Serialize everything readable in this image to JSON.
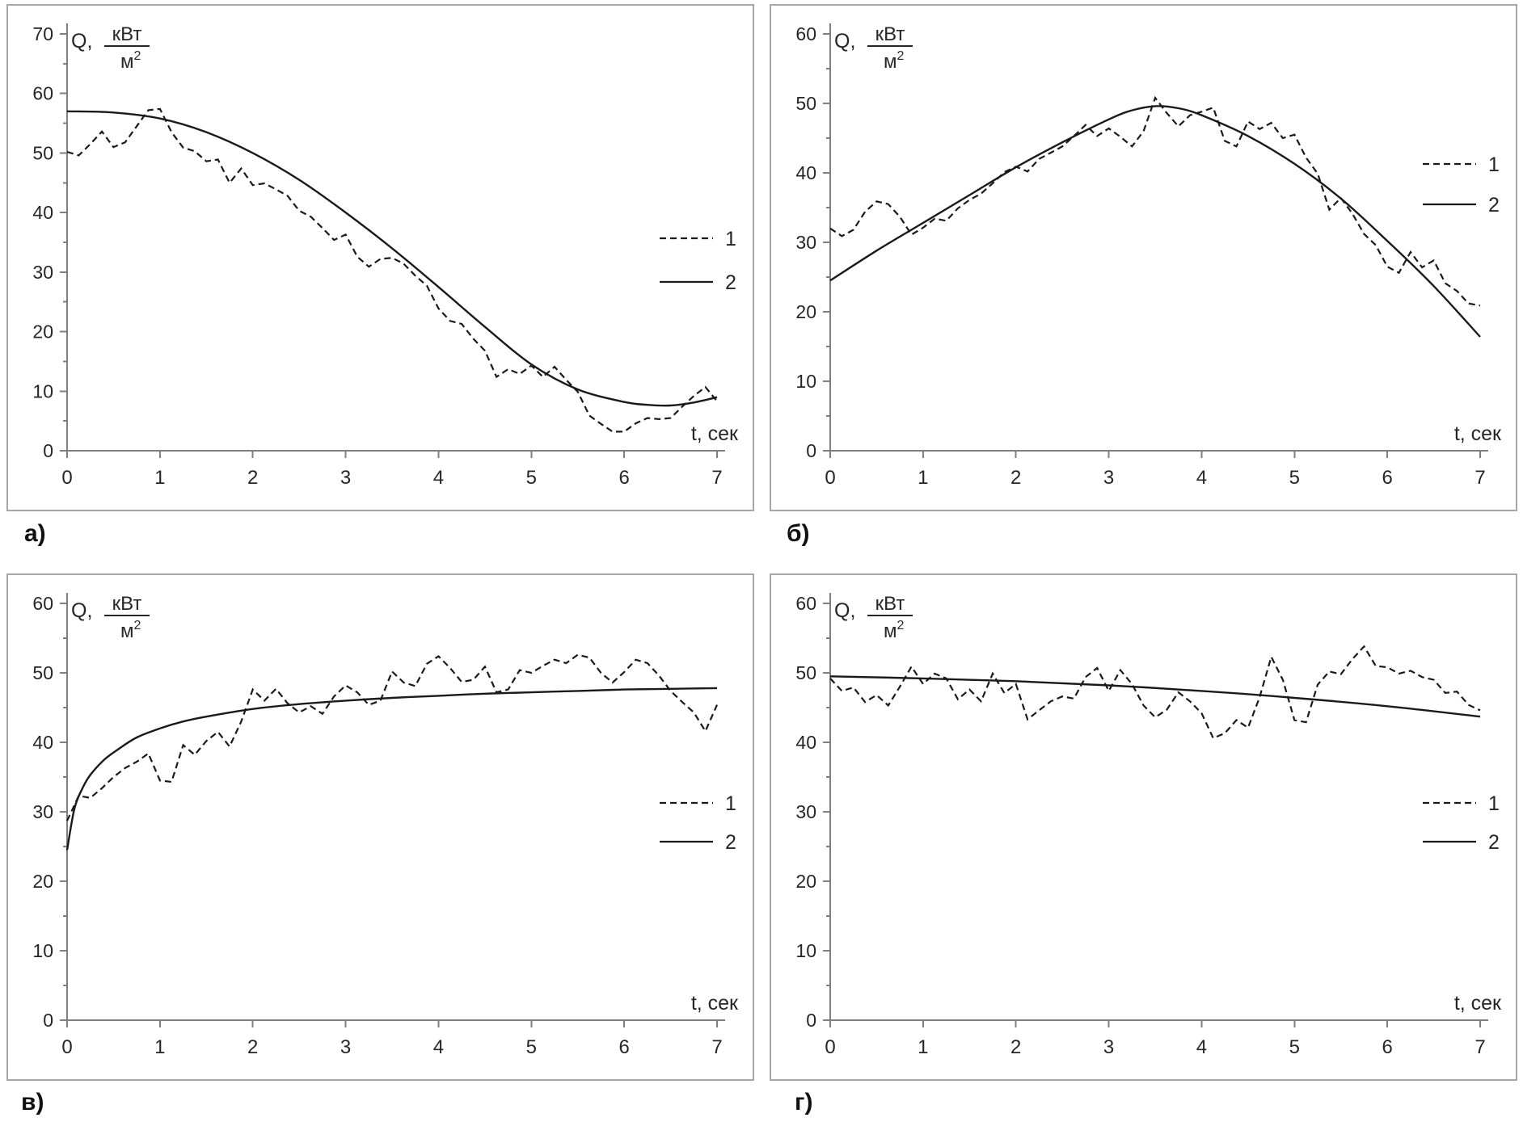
{
  "styles": {
    "background": "#ffffff",
    "panel_border_color": "#a6a6a6",
    "axis_color": "#7f7f7f",
    "text_color": "#262626",
    "curve_color": "#1a1a1a"
  },
  "chart_data": [
    {
      "id": "a",
      "panel_label": "а)",
      "type": "line",
      "title": "",
      "xlabel": "t, сек",
      "ylabel_prefix": "Q,",
      "ylabel_numerator": "кВт",
      "ylabel_denominator_base": "м",
      "ylabel_denominator_exponent": "2",
      "xlim": [
        0,
        7
      ],
      "ylim": [
        0,
        70
      ],
      "xtick_step": 1,
      "ytick_step": 10,
      "ytick_minor_step": 5,
      "grid": false,
      "legend": {
        "position": "right-middle",
        "rows_y": [
          288,
          342
        ],
        "items": [
          {
            "label": "1",
            "style": "dashed"
          },
          {
            "label": "2",
            "style": "solid"
          }
        ]
      },
      "series": [
        {
          "name": "1",
          "style": "dashed",
          "x": [
            0,
            0.125,
            0.25,
            0.375,
            0.5,
            0.625,
            0.75,
            0.875,
            1,
            1.125,
            1.25,
            1.375,
            1.5,
            1.625,
            1.75,
            1.875,
            2,
            2.125,
            2.25,
            2.375,
            2.5,
            2.625,
            2.75,
            2.875,
            3,
            3.125,
            3.25,
            3.375,
            3.5,
            3.625,
            3.75,
            3.875,
            4,
            4.125,
            4.25,
            4.375,
            4.5,
            4.625,
            4.75,
            4.875,
            5,
            5.125,
            5.25,
            5.375,
            5.5,
            5.625,
            5.75,
            5.875,
            6,
            6.125,
            6.25,
            6.375,
            6.5,
            6.625,
            6.75,
            6.875,
            7
          ],
          "y": [
            50.2,
            49.6,
            51.5,
            53.6,
            51.0,
            51.8,
            54.5,
            57.2,
            57.4,
            53.5,
            50.9,
            50.3,
            48.6,
            48.9,
            45.0,
            47.4,
            44.6,
            44.9,
            43.9,
            42.8,
            40.3,
            39.3,
            37.4,
            35.4,
            36.3,
            32.6,
            30.9,
            32.2,
            32.4,
            31.4,
            29.4,
            27.7,
            23.9,
            21.8,
            21.3,
            18.8,
            16.8,
            12.4,
            13.7,
            12.9,
            14.3,
            12.4,
            14.1,
            11.9,
            9.9,
            5.9,
            4.5,
            3.2,
            3.2,
            4.6,
            5.5,
            5.3,
            5.5,
            7.4,
            9.2,
            10.7,
            8.3
          ]
        },
        {
          "name": "2",
          "style": "solid",
          "x": [
            0,
            0.5,
            1,
            1.5,
            2,
            2.5,
            3,
            3.5,
            4,
            4.5,
            5,
            5.5,
            6,
            6.25,
            6.5,
            6.75,
            7
          ],
          "y": [
            57.0,
            56.8,
            55.8,
            53.5,
            50.0,
            45.5,
            40.0,
            34.0,
            27.5,
            20.8,
            14.5,
            10.3,
            8.2,
            7.7,
            7.6,
            8.1,
            9.0
          ]
        }
      ]
    },
    {
      "id": "b",
      "panel_label": "б)",
      "type": "line",
      "title": "",
      "xlabel": "t, сек",
      "ylabel_prefix": "Q,",
      "ylabel_numerator": "кВт",
      "ylabel_denominator_base": "м",
      "ylabel_denominator_exponent": "2",
      "xlim": [
        0,
        7
      ],
      "ylim": [
        0,
        60
      ],
      "xtick_step": 1,
      "ytick_step": 10,
      "ytick_minor_step": 5,
      "grid": false,
      "legend": {
        "position": "right-upper",
        "rows_y": [
          196,
          246
        ],
        "items": [
          {
            "label": "1",
            "style": "dashed"
          },
          {
            "label": "2",
            "style": "solid"
          }
        ]
      },
      "series": [
        {
          "name": "1",
          "style": "dashed",
          "x": [
            0,
            0.125,
            0.25,
            0.375,
            0.5,
            0.625,
            0.75,
            0.875,
            1,
            1.125,
            1.25,
            1.375,
            1.5,
            1.625,
            1.75,
            1.875,
            2,
            2.125,
            2.25,
            2.375,
            2.5,
            2.625,
            2.75,
            2.875,
            3,
            3.125,
            3.25,
            3.375,
            3.5,
            3.625,
            3.75,
            3.875,
            4,
            4.125,
            4.25,
            4.375,
            4.5,
            4.625,
            4.75,
            4.875,
            5,
            5.125,
            5.25,
            5.375,
            5.5,
            5.625,
            5.75,
            5.875,
            6,
            6.125,
            6.25,
            6.375,
            6.5,
            6.625,
            6.75,
            6.875,
            7
          ],
          "y": [
            32.0,
            30.9,
            31.8,
            34.4,
            35.9,
            35.5,
            33.7,
            31.1,
            32.1,
            33.4,
            33.1,
            34.9,
            36.1,
            37.0,
            38.5,
            40.1,
            40.9,
            40.2,
            42.0,
            42.9,
            43.8,
            45.3,
            46.9,
            45.3,
            46.4,
            45.2,
            43.8,
            46.0,
            50.8,
            48.6,
            46.7,
            48.3,
            48.8,
            49.4,
            44.6,
            43.8,
            47.4,
            46.3,
            47.2,
            45.0,
            45.5,
            42.2,
            39.9,
            34.7,
            36.4,
            34.1,
            31.2,
            29.6,
            26.5,
            25.6,
            28.6,
            26.4,
            27.4,
            24.1,
            23.0,
            21.2,
            20.9
          ]
        },
        {
          "name": "2",
          "style": "solid",
          "x": [
            0,
            0.5,
            1,
            1.5,
            2,
            2.5,
            3,
            3.25,
            3.5,
            3.75,
            4,
            4.5,
            5,
            5.5,
            6,
            6.5,
            7
          ],
          "y": [
            24.5,
            28.8,
            32.8,
            36.8,
            40.8,
            44.4,
            47.7,
            49.0,
            49.6,
            49.3,
            48.3,
            45.3,
            41.3,
            36.3,
            30.2,
            23.7,
            16.4
          ]
        }
      ]
    },
    {
      "id": "v",
      "panel_label": "в)",
      "type": "line",
      "title": "",
      "xlabel": "t, сек",
      "ylabel_prefix": "Q,",
      "ylabel_numerator": "кВт",
      "ylabel_denominator_base": "м",
      "ylabel_denominator_exponent": "2",
      "xlim": [
        0,
        7
      ],
      "ylim": [
        0,
        60
      ],
      "xtick_step": 1,
      "ytick_step": 10,
      "ytick_minor_step": 5,
      "grid": false,
      "legend": {
        "position": "right-lower",
        "rows_y": [
          282,
          330
        ],
        "items": [
          {
            "label": "1",
            "style": "dashed"
          },
          {
            "label": "2",
            "style": "solid"
          }
        ]
      },
      "series": [
        {
          "name": "1",
          "style": "dashed",
          "x": [
            0,
            0.125,
            0.25,
            0.375,
            0.5,
            0.625,
            0.75,
            0.875,
            1,
            1.125,
            1.25,
            1.375,
            1.5,
            1.625,
            1.75,
            1.875,
            2,
            2.125,
            2.25,
            2.375,
            2.5,
            2.625,
            2.75,
            2.875,
            3,
            3.125,
            3.25,
            3.375,
            3.5,
            3.625,
            3.75,
            3.875,
            4,
            4.125,
            4.25,
            4.375,
            4.5,
            4.625,
            4.75,
            4.875,
            5,
            5.125,
            5.25,
            5.375,
            5.5,
            5.625,
            5.75,
            5.875,
            6,
            6.125,
            6.25,
            6.375,
            6.5,
            6.625,
            6.75,
            6.875,
            7
          ],
          "y": [
            28.7,
            32.3,
            32.0,
            33.4,
            35.0,
            36.3,
            37.2,
            38.4,
            34.5,
            34.3,
            39.6,
            38.2,
            40.2,
            41.5,
            39.4,
            43.0,
            47.6,
            46.0,
            47.7,
            45.6,
            44.3,
            45.2,
            44.1,
            46.6,
            48.2,
            47.2,
            45.4,
            46.0,
            50.2,
            48.6,
            48.1,
            51.3,
            52.4,
            50.7,
            48.7,
            49.0,
            50.9,
            47.2,
            47.6,
            50.4,
            50.0,
            51.0,
            51.9,
            51.4,
            52.6,
            52.2,
            50.0,
            48.6,
            50.1,
            51.9,
            51.4,
            49.6,
            47.4,
            45.8,
            44.3,
            41.6,
            45.4
          ]
        },
        {
          "name": "2",
          "style": "solid",
          "x": [
            0,
            0.08,
            0.17,
            0.25,
            0.4,
            0.55,
            0.75,
            1,
            1.25,
            1.5,
            2,
            2.5,
            3,
            3.5,
            4,
            4.5,
            5,
            5.5,
            6,
            6.5,
            7
          ],
          "y": [
            24.5,
            30.5,
            33.5,
            35.3,
            37.5,
            39.0,
            40.7,
            42.0,
            43.0,
            43.7,
            44.8,
            45.5,
            46.0,
            46.4,
            46.7,
            47.0,
            47.2,
            47.4,
            47.6,
            47.7,
            47.8
          ]
        }
      ]
    },
    {
      "id": "g",
      "panel_label": "г)",
      "type": "line",
      "title": "",
      "xlabel": "t, сек",
      "ylabel_prefix": "Q,",
      "ylabel_numerator": "кВт",
      "ylabel_denominator_base": "м",
      "ylabel_denominator_exponent": "2",
      "xlim": [
        0,
        7
      ],
      "ylim": [
        0,
        60
      ],
      "xtick_step": 1,
      "ytick_step": 10,
      "ytick_minor_step": 5,
      "grid": false,
      "legend": {
        "position": "right-lower",
        "rows_y": [
          282,
          330
        ],
        "items": [
          {
            "label": "1",
            "style": "dashed"
          },
          {
            "label": "2",
            "style": "solid"
          }
        ]
      },
      "series": [
        {
          "name": "1",
          "style": "dashed",
          "x": [
            0,
            0.125,
            0.25,
            0.375,
            0.5,
            0.625,
            0.75,
            0.875,
            1,
            1.125,
            1.25,
            1.375,
            1.5,
            1.625,
            1.75,
            1.875,
            2,
            2.125,
            2.25,
            2.375,
            2.5,
            2.625,
            2.75,
            2.875,
            3,
            3.125,
            3.25,
            3.375,
            3.5,
            3.625,
            3.75,
            3.875,
            4,
            4.125,
            4.25,
            4.375,
            4.5,
            4.625,
            4.75,
            4.875,
            5,
            5.125,
            5.25,
            5.375,
            5.5,
            5.625,
            5.75,
            5.875,
            6,
            6.125,
            6.25,
            6.375,
            6.5,
            6.625,
            6.75,
            6.875,
            7
          ],
          "y": [
            49.2,
            47.4,
            47.9,
            45.8,
            46.8,
            45.3,
            48.0,
            50.9,
            48.4,
            49.9,
            49.2,
            46.2,
            47.6,
            45.9,
            49.9,
            47.1,
            48.4,
            43.3,
            44.6,
            45.9,
            46.6,
            46.3,
            49.4,
            50.7,
            47.4,
            50.4,
            48.4,
            45.3,
            43.6,
            44.7,
            47.2,
            45.9,
            44.2,
            40.6,
            41.3,
            43.2,
            42.1,
            46.5,
            52.3,
            49.0,
            43.2,
            42.9,
            48.3,
            50.2,
            49.8,
            52.0,
            53.8,
            51.0,
            50.8,
            49.9,
            50.3,
            49.4,
            49.0,
            47.1,
            47.3,
            45.4,
            44.6
          ]
        },
        {
          "name": "2",
          "style": "solid",
          "x": [
            0,
            1,
            2,
            3,
            4,
            5,
            6,
            7
          ],
          "y": [
            49.5,
            49.2,
            48.8,
            48.2,
            47.4,
            46.4,
            45.2,
            43.7
          ]
        }
      ]
    }
  ]
}
